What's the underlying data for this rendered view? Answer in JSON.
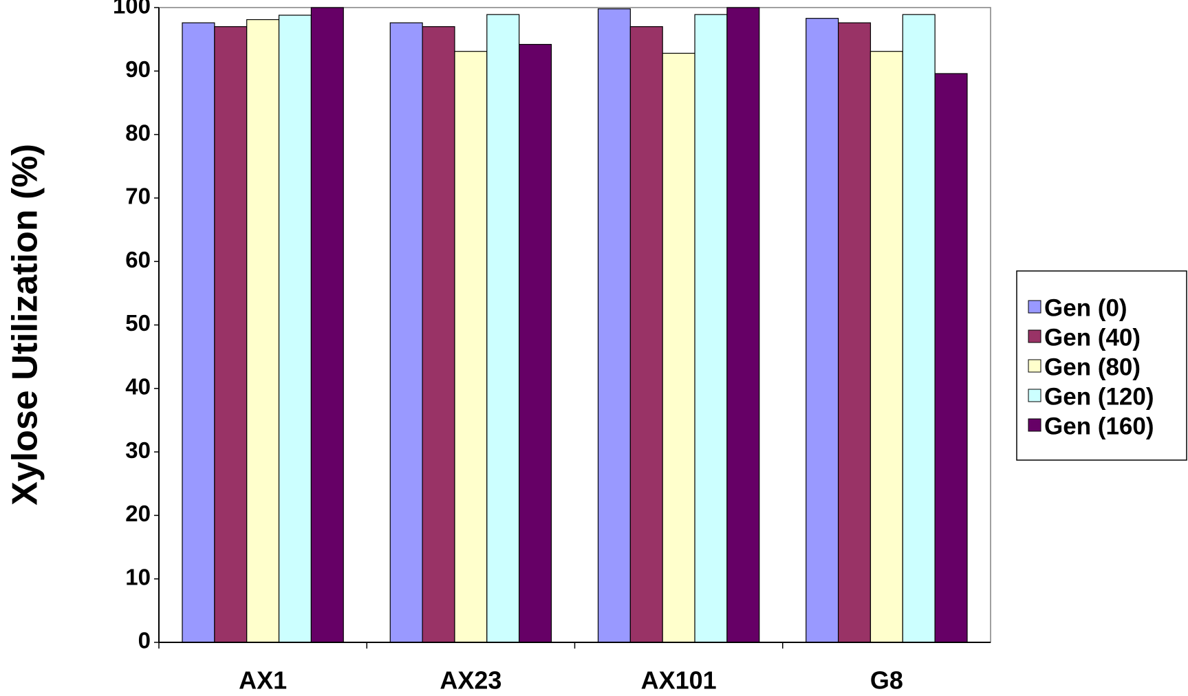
{
  "chart_data": {
    "type": "bar",
    "y_label": "Xylose Utilization (%)",
    "categories": [
      "AX1",
      "AX23",
      "AX101",
      "G8"
    ],
    "series": [
      {
        "name": "Gen (0)",
        "color": "#9999ff",
        "values": [
          97.6,
          97.6,
          99.8,
          98.3
        ]
      },
      {
        "name": "Gen (40)",
        "color": "#993366",
        "values": [
          97.0,
          97.0,
          97.0,
          97.6
        ]
      },
      {
        "name": "Gen (80)",
        "color": "#ffffcc",
        "values": [
          98.1,
          93.1,
          92.8,
          93.1
        ]
      },
      {
        "name": "Gen (120)",
        "color": "#ccffff",
        "values": [
          98.8,
          98.9,
          98.9,
          98.9
        ]
      },
      {
        "name": "Gen (160)",
        "color": "#660066",
        "values": [
          100,
          94.2,
          100,
          89.6
        ]
      }
    ],
    "ylim": [
      0,
      100
    ],
    "yticks": [
      0,
      10,
      20,
      30,
      40,
      50,
      60,
      70,
      80,
      90,
      100
    ],
    "grid": false,
    "legend": "right"
  }
}
